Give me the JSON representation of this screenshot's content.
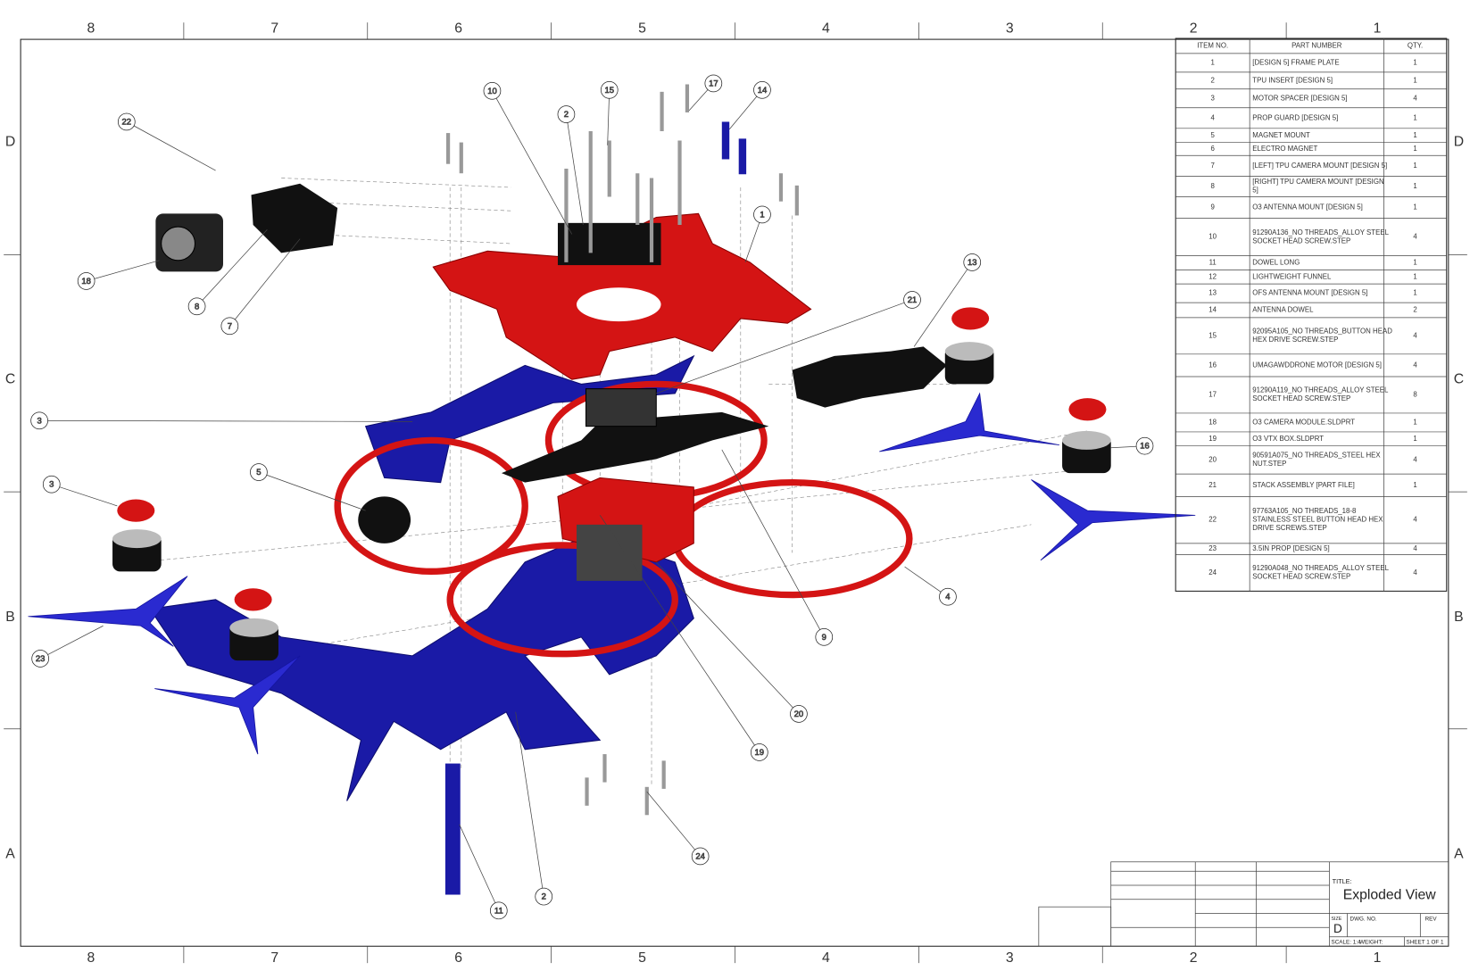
{
  "zones": {
    "columns": [
      "8",
      "7",
      "6",
      "5",
      "4",
      "3",
      "2",
      "1"
    ],
    "rows": [
      "D",
      "C",
      "B",
      "A"
    ]
  },
  "bom": {
    "header": [
      "ITEM NO.",
      "PART NUMBER",
      "QTY."
    ],
    "rows": [
      [
        "1",
        "[DESIGN 5] FRAME PLATE",
        "1"
      ],
      [
        "2",
        "TPU INSERT [DESIGN 5]",
        "1"
      ],
      [
        "3",
        "MOTOR SPACER [DESIGN 5]",
        "4"
      ],
      [
        "4",
        "PROP GUARD [DESIGN 5]",
        "1"
      ],
      [
        "5",
        "MAGNET MOUNT",
        "1"
      ],
      [
        "6",
        "ELECTRO MAGNET",
        "1"
      ],
      [
        "7",
        "[LEFT] TPU CAMERA MOUNT [DESIGN 5]",
        "1"
      ],
      [
        "8",
        "[RIGHT] TPU CAMERA MOUNT [DESIGN 5]",
        "1"
      ],
      [
        "9",
        "O3 ANTENNA MOUNT [DESIGN 5]",
        "1"
      ],
      [
        "10",
        "91290A136_NO THREADS_ALLOY STEEL SOCKET HEAD SCREW.STEP",
        "4"
      ],
      [
        "11",
        "DOWEL LONG",
        "1"
      ],
      [
        "12",
        "LIGHTWEIGHT FUNNEL",
        "1"
      ],
      [
        "13",
        "OFS ANTENNA MOUNT [DESIGN 5]",
        "1"
      ],
      [
        "14",
        "ANTENNA DOWEL",
        "2"
      ],
      [
        "15",
        "92095A105_NO THREADS_BUTTON HEAD HEX DRIVE SCREW.STEP",
        "4"
      ],
      [
        "16",
        "UMAGAWDDRONE MOTOR [DESIGN 5]",
        "4"
      ],
      [
        "17",
        "91290A119_NO THREADS_ALLOY STEEL SOCKET HEAD SCREW.STEP",
        "8"
      ],
      [
        "18",
        "O3 CAMERA MODULE.SLDPRT",
        "1"
      ],
      [
        "19",
        "O3 VTX BOX.SLDPRT",
        "1"
      ],
      [
        "20",
        "90591A075_NO THREADS_STEEL HEX NUT.STEP",
        "4"
      ],
      [
        "21",
        "STACK ASSEMBLY [PART FILE]",
        "1"
      ],
      [
        "22",
        "97763A105_NO THREADS_18-8 STAINLESS STEEL BUTTON HEAD HEX DRIVE SCREWS.STEP",
        "4"
      ],
      [
        "23",
        "3.5IN PROP [DESIGN 5]",
        "4"
      ],
      [
        "24",
        "91290A048_NO THREADS_ALLOY STEEL SOCKET HEAD SCREW.STEP",
        "4"
      ]
    ]
  },
  "balloons": [
    "10",
    "2",
    "15",
    "17",
    "14",
    "22",
    "18",
    "8",
    "7",
    "1",
    "13",
    "21",
    "3",
    "5",
    "16",
    "3",
    "4",
    "9",
    "23",
    "20",
    "19",
    "24",
    "2",
    "11"
  ],
  "title_block": {
    "title_label": "TITLE:",
    "title": "Exploded View",
    "size_label": "SIZE",
    "size": "D",
    "dwg_no_label": "DWG. NO.",
    "rev_label": "REV",
    "scale": "SCALE: 1:4",
    "weight": "WEIGHT:",
    "sheet": "SHEET 1 OF 1"
  }
}
